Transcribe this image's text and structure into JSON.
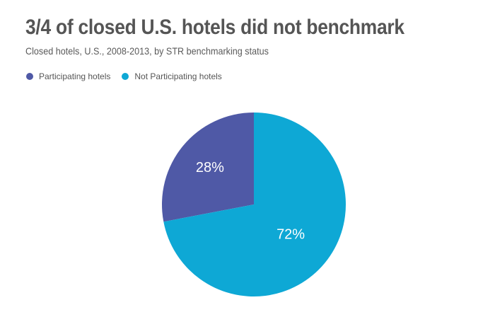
{
  "title": "3/4 of closed U.S. hotels did not benchmark",
  "subtitle": "Closed hotels, U.S., 2008-2013, by STR benchmarking status",
  "colors": {
    "participating": "#4f59a6",
    "not_participating": "#0ea8d5"
  },
  "chart_data": {
    "type": "pie",
    "legend_position": "top-left",
    "slices": [
      {
        "name": "Participating hotels",
        "value": 28,
        "label": "28%",
        "color": "#4f59a6"
      },
      {
        "name": "Not Participating hotels",
        "value": 72,
        "label": "72%",
        "color": "#0ea8d5"
      }
    ]
  }
}
